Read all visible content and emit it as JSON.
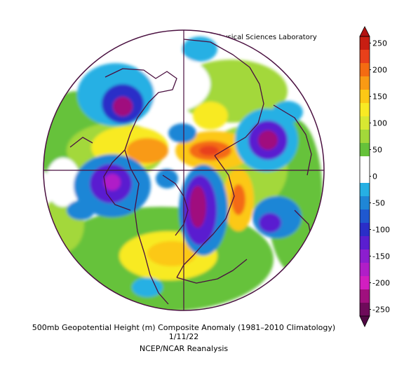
{
  "header": {
    "credit": "NOAA Physical Sciences Laboratory"
  },
  "footer": {
    "line1": "500mb Geopotential Height (m) Composite Anomaly (1981–2010 Climatology)",
    "line2": "1/11/22",
    "line3": "NCEP/NCAR Reanalysis"
  },
  "colorbar": {
    "levels": [
      {
        "label": "250",
        "color": "#c81e12"
      },
      {
        "label": "",
        "color": "#e8401a"
      },
      {
        "label": "200",
        "color": "#f46b12"
      },
      {
        "label": "",
        "color": "#f99a14"
      },
      {
        "label": "150",
        "color": "#fcc815"
      },
      {
        "label": "",
        "color": "#f8ea24"
      },
      {
        "label": "100",
        "color": "#d8e832"
      },
      {
        "label": "",
        "color": "#a3d83a"
      },
      {
        "label": "50",
        "color": "#66c23a"
      },
      {
        "label": "",
        "color": "#ffffff"
      },
      {
        "label": "0",
        "color": "#ffffff"
      },
      {
        "label": "",
        "color": "#26b0e4"
      },
      {
        "label": "-50",
        "color": "#1f86d6"
      },
      {
        "label": "",
        "color": "#1f58d0"
      },
      {
        "label": "-100",
        "color": "#2a2ec8"
      },
      {
        "label": "",
        "color": "#5a1ed0"
      },
      {
        "label": "-150",
        "color": "#8c1ecf"
      },
      {
        "label": "",
        "color": "#b01ec8"
      },
      {
        "label": "-200",
        "color": "#d21ec0"
      },
      {
        "label": "",
        "color": "#a0107e"
      },
      {
        "label": "-250",
        "color": "#6e0a5a"
      }
    ],
    "over_color": "#b31312",
    "under_color": "#500844"
  },
  "map": {
    "background": "#ffffff",
    "border_color": "#4a1040",
    "land_color": "#4a1040"
  }
}
